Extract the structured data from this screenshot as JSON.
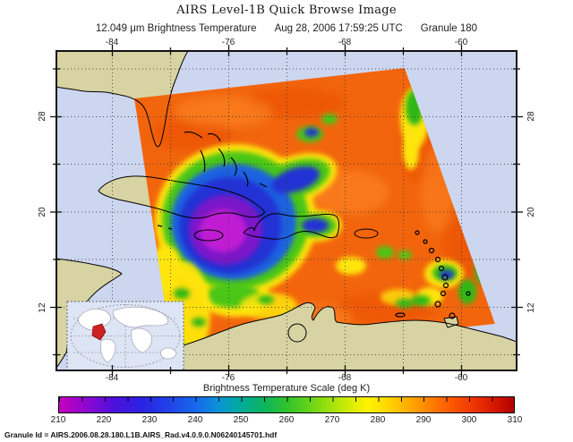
{
  "header": {
    "title": "AIRS Level-1B Quick Browse Image",
    "wavelength_label": "12.049 μm Brightness Temperature",
    "datetime_label": "Aug 28, 2006 17:59:25 UTC",
    "granule_label": "Granule 180"
  },
  "map_axes": {
    "lon_ticks_top": [
      "-84",
      "-76",
      "-68",
      "-60"
    ],
    "lon_ticks_bottom": [
      "-84",
      "-76",
      "-68",
      "-60"
    ],
    "lat_ticks_left": [
      "28",
      "20",
      "12"
    ],
    "lat_ticks_right": [
      "28",
      "20",
      "12"
    ]
  },
  "colorbar": {
    "title": "Brightness Temperature Scale (deg K)",
    "tick_labels": [
      "210",
      "220",
      "230",
      "240",
      "250",
      "260",
      "270",
      "280",
      "290",
      "300",
      "310"
    ],
    "min": 210,
    "max": 310,
    "units": "deg K"
  },
  "footer": {
    "granule_id": "Granule Id = AIRS.2006.08.28.180.L1B.AIRS_Rad.v4.0.9.0.N06240145701.hdf"
  },
  "colors": {
    "ocean": "#cdd6ef",
    "land": "#d7d3a3",
    "swath_base": "#f2650c",
    "cold_cloud_core": "#c01dd4",
    "scale_low": "#c400be",
    "scale_high": "#b20000"
  },
  "chart_data": {
    "type": "heatmap",
    "title": "12.049 μm Brightness Temperature (AIRS Level-1B Quick Browse)",
    "scale_label": "Brightness Temperature Scale (deg K)",
    "scale_range": [
      210,
      310
    ],
    "scale_ticks": [
      210,
      220,
      230,
      240,
      250,
      260,
      270,
      280,
      290,
      300,
      310
    ],
    "lon_gridlines": [
      -84,
      -76,
      -68,
      -60
    ],
    "lat_gridlines": [
      28,
      20,
      12
    ],
    "region": "Caribbean / Gulf of Mexico swath with cold cloud mass (~210-230 K) centered over Cuba and Hispaniola, warm background ~290-300 K"
  }
}
